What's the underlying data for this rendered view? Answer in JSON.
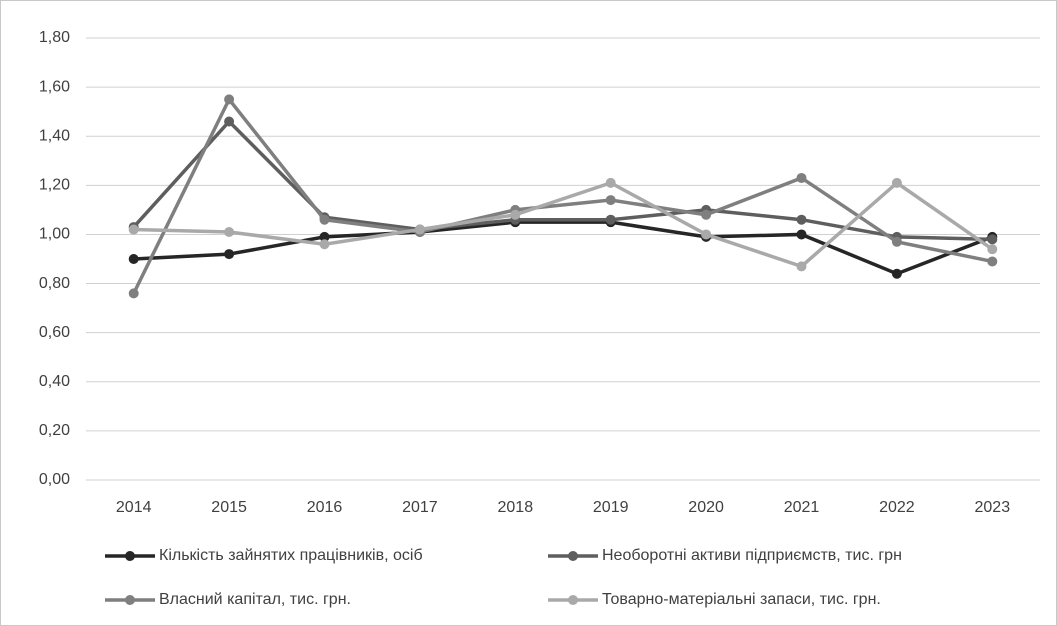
{
  "chart_data": {
    "type": "line",
    "categories": [
      "2014",
      "2015",
      "2016",
      "2017",
      "2018",
      "2019",
      "2020",
      "2021",
      "2022",
      "2023"
    ],
    "series": [
      {
        "name": "Кількість зайнятих працівників, осіб",
        "color": "#262626",
        "values": [
          0.9,
          0.92,
          0.99,
          1.01,
          1.05,
          1.05,
          0.99,
          1.0,
          0.84,
          0.99
        ]
      },
      {
        "name": "Необоротні активи підприємств, тис. грн",
        "color": "#5e5e5e",
        "values": [
          1.03,
          1.46,
          1.07,
          1.02,
          1.06,
          1.06,
          1.1,
          1.06,
          0.99,
          0.98
        ]
      },
      {
        "name": "Власний капітал, тис. грн.",
        "color": "#7f7f7f",
        "values": [
          0.76,
          1.55,
          1.06,
          1.01,
          1.1,
          1.14,
          1.08,
          1.23,
          0.97,
          0.89
        ]
      },
      {
        "name": "Товарно-матеріальні запаси, тис. грн.",
        "color": "#a9a9a9",
        "values": [
          1.02,
          1.01,
          0.96,
          1.02,
          1.08,
          1.21,
          1.0,
          0.87,
          1.21,
          0.94
        ]
      }
    ],
    "ylim": [
      0,
      1.8
    ],
    "yticks": [
      {
        "value": 0,
        "label": "0,00"
      },
      {
        "value": 0.2,
        "label": "0,20"
      },
      {
        "value": 0.4,
        "label": "0,40"
      },
      {
        "value": 0.6,
        "label": "0,60"
      },
      {
        "value": 0.8,
        "label": "0,80"
      },
      {
        "value": 1.0,
        "label": "1,00"
      },
      {
        "value": 1.2,
        "label": "1,20"
      },
      {
        "value": 1.4,
        "label": "1,40"
      },
      {
        "value": 1.6,
        "label": "1,60"
      },
      {
        "value": 1.8,
        "label": "1,80"
      }
    ],
    "grid": true,
    "legend": "bottom"
  }
}
